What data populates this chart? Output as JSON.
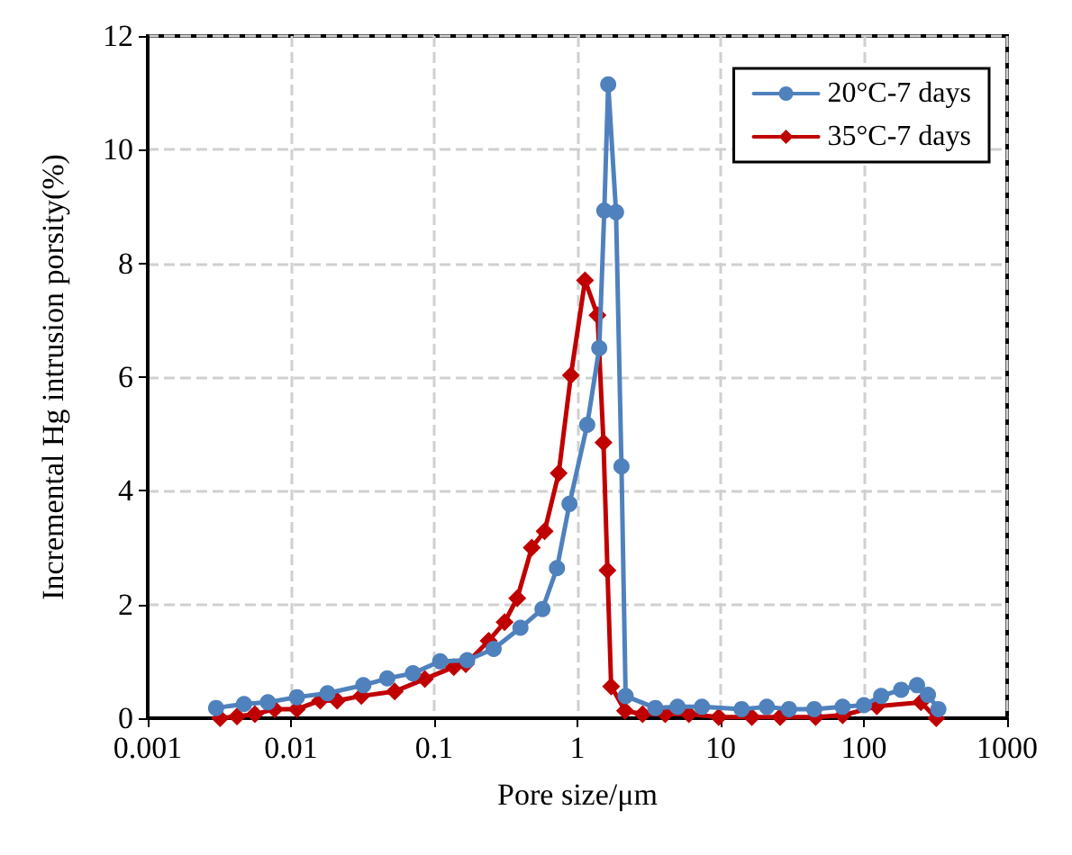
{
  "chart_data": {
    "type": "line",
    "xlabel": "Pore size/μm",
    "ylabel": "Incremental Hg intrusion porsity(%)",
    "log": "x",
    "grid": true,
    "legend": "top right",
    "line_style": "solid",
    "xlim": [
      0.001,
      1000
    ],
    "xticks": [
      0.001,
      0.01,
      0.1,
      1,
      10,
      100,
      1000
    ],
    "ylim": [
      0,
      12
    ],
    "yticks": [
      0,
      2,
      4,
      6,
      8,
      10,
      12
    ],
    "series": [
      {
        "name": "20°C-7 days",
        "color": "#4f81bd",
        "marker": "circle",
        "x": [
          0.003,
          0.0047,
          0.0069,
          0.011,
          0.018,
          0.032,
          0.047,
          0.071,
          0.11,
          0.17,
          0.26,
          0.4,
          0.57,
          0.72,
          0.88,
          1.17,
          1.42,
          1.54,
          1.64,
          1.86,
          2.03,
          2.17,
          3.5,
          5,
          7.4,
          14,
          21,
          30,
          45,
          71,
          100,
          132,
          182,
          235,
          280,
          331
        ],
        "values": [
          0.18,
          0.25,
          0.28,
          0.37,
          0.44,
          0.58,
          0.7,
          0.79,
          1.0,
          1.02,
          1.22,
          1.59,
          1.92,
          2.64,
          3.77,
          5.16,
          6.51,
          8.93,
          11.15,
          8.9,
          4.43,
          0.39,
          0.18,
          0.2,
          0.2,
          0.16,
          0.2,
          0.16,
          0.16,
          0.2,
          0.23,
          0.39,
          0.5,
          0.58,
          0.41,
          0.16
        ]
      },
      {
        "name": "35°C-7 days",
        "color": "#c00000",
        "marker": "diamond",
        "x": [
          0.0032,
          0.0042,
          0.0056,
          0.0077,
          0.011,
          0.016,
          0.021,
          0.031,
          0.053,
          0.086,
          0.137,
          0.166,
          0.24,
          0.31,
          0.38,
          0.48,
          0.59,
          0.74,
          0.9,
          1.13,
          1.38,
          1.52,
          1.62,
          1.72,
          2.15,
          2.85,
          4.1,
          6,
          9.7,
          16.5,
          26,
          46,
          71,
          123,
          250,
          320
        ],
        "values": [
          0,
          0.03,
          0.07,
          0.16,
          0.16,
          0.31,
          0.31,
          0.39,
          0.47,
          0.69,
          0.9,
          0.95,
          1.36,
          1.69,
          2.11,
          3.0,
          3.29,
          4.31,
          6.03,
          7.7,
          7.09,
          4.85,
          2.6,
          0.56,
          0.13,
          0.07,
          0.07,
          0.07,
          0.02,
          0.02,
          0.02,
          0.02,
          0.05,
          0.21,
          0.28,
          0
        ]
      }
    ]
  }
}
